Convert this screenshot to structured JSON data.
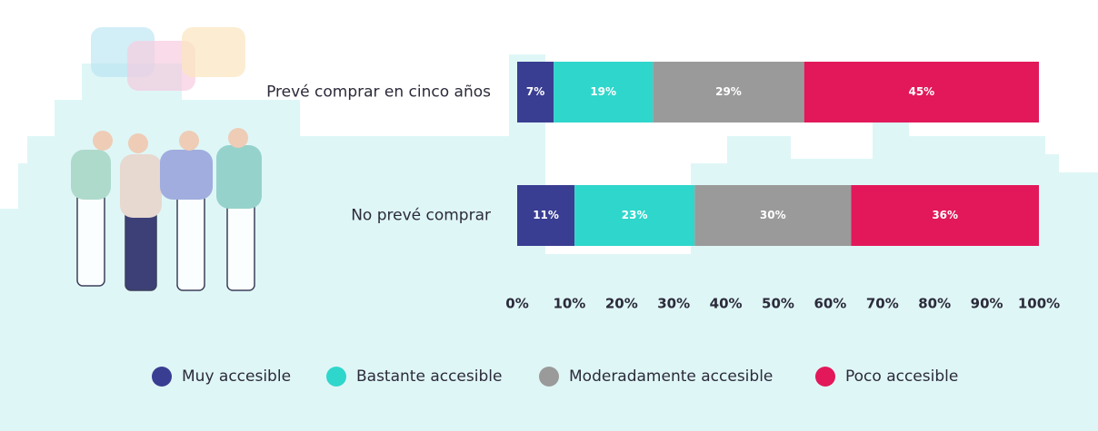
{
  "chart_data": {
    "type": "stacked-bar-horizontal",
    "categories": [
      "Prevé comprar en cinco años",
      "No prevé comprar"
    ],
    "series": [
      {
        "name": "Muy accesible",
        "color": "#393e92",
        "values": [
          7,
          11
        ],
        "value_labels": [
          "7%",
          "11%"
        ]
      },
      {
        "name": "Bastante accesible",
        "color": "#2fd6cb",
        "values": [
          19,
          23
        ],
        "value_labels": [
          "19%",
          "23%"
        ]
      },
      {
        "name": "Moderadamente accesible",
        "color": "#9a9a9a",
        "values": [
          29,
          30
        ],
        "value_labels": [
          "29%",
          "30%"
        ]
      },
      {
        "name": "Poco accesible",
        "color": "#e2185a",
        "values": [
          45,
          36
        ],
        "value_labels": [
          "45%",
          "36%"
        ]
      }
    ],
    "xlim": [
      0,
      100
    ],
    "xticks": [
      {
        "value": 0,
        "label": "0%"
      },
      {
        "value": 10,
        "label": "10%"
      },
      {
        "value": 20,
        "label": "20%"
      },
      {
        "value": 30,
        "label": "30%"
      },
      {
        "value": 40,
        "label": "40%"
      },
      {
        "value": 50,
        "label": "50%"
      },
      {
        "value": 60,
        "label": "60%"
      },
      {
        "value": 70,
        "label": "70%"
      },
      {
        "value": 80,
        "label": "80%"
      },
      {
        "value": 90,
        "label": "90%"
      },
      {
        "value": 100,
        "label": "100%"
      }
    ],
    "grid": false
  }
}
